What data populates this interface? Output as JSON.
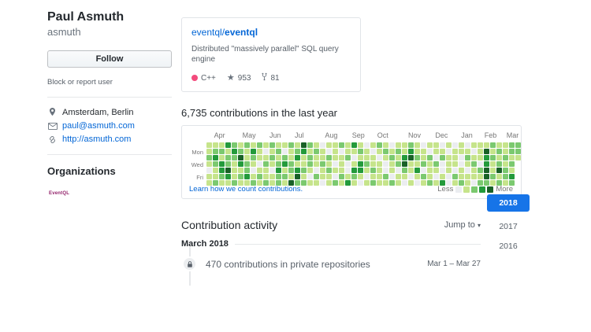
{
  "accent": {
    "link_blue": "#0366d6",
    "year_active_bg": "#1674e8"
  },
  "profile": {
    "name": "Paul Asmuth",
    "username": "asmuth",
    "follow_label": "Follow",
    "block_label": "Block or report user",
    "location": "Amsterdam, Berlin",
    "email": "paul@asmuth.com",
    "website": "http://asmuth.com",
    "organizations_title": "Organizations",
    "organization": "EventQL"
  },
  "pinned_repo": {
    "owner": "eventql/",
    "name": "eventql",
    "description": "Distributed \"massively parallel\" SQL query engine",
    "language": "C++",
    "language_color": "#f34b7d",
    "stars": "953",
    "forks": "81"
  },
  "contributions": {
    "summary": "6,735 contributions in the last year",
    "footer_link": "Learn how we count contributions.",
    "legend_less": "Less",
    "legend_more": "More",
    "level_colors": [
      "#ebedf0",
      "#c6e48b",
      "#7bc96f",
      "#239a3b",
      "#196127"
    ],
    "day_labels": [
      {
        "label": "Mon",
        "row": 1
      },
      {
        "label": "Wed",
        "row": 3
      },
      {
        "label": "Fri",
        "row": 5
      }
    ],
    "months": [
      {
        "label": "Apr",
        "col": 1.2
      },
      {
        "label": "May",
        "col": 5.7
      },
      {
        "label": "Jun",
        "col": 10.0
      },
      {
        "label": "Jul",
        "col": 14.0
      },
      {
        "label": "Aug",
        "col": 18.8
      },
      {
        "label": "Sep",
        "col": 23.1
      },
      {
        "label": "Oct",
        "col": 27.1
      },
      {
        "label": "Nov",
        "col": 32.0
      },
      {
        "label": "Dec",
        "col": 36.3
      },
      {
        "label": "Jan",
        "col": 40.4
      },
      {
        "label": "Feb",
        "col": 44.1
      },
      {
        "label": "Mar",
        "col": 47.6
      }
    ],
    "weeks": [
      "1121011",
      "1232112",
      "1213321",
      "3122431",
      "2321112",
      "1243121",
      "2112231",
      "1321012",
      "2110121",
      "1012112",
      "2121011",
      "1212322",
      "1023121",
      "2112214",
      "1231342",
      "4311212",
      "2122101",
      "1211021",
      "0112110",
      "1021211",
      "1110102",
      "2011121",
      "1120013",
      "3101321",
      "1213310",
      "0112101",
      "1011212",
      "2101111",
      "1210021",
      "0121102",
      "1212011",
      "1134210",
      "2341101",
      "1121310",
      "0112021",
      "1021112",
      "1102101",
      "0120013",
      "1011100",
      "0111021",
      "1100112",
      "0121011",
      "1012110",
      "1110212",
      "1433442",
      "2121121",
      "1212412",
      "1121221",
      "2212132",
      "221"
    ]
  },
  "activity": {
    "title": "Contribution activity",
    "jump_to": "Jump to",
    "years": [
      "2018",
      "2017",
      "2016"
    ],
    "month_header": "March 2018",
    "item_text": "470 contributions in private repositories",
    "item_date": "Mar 1 – Mar 27"
  }
}
